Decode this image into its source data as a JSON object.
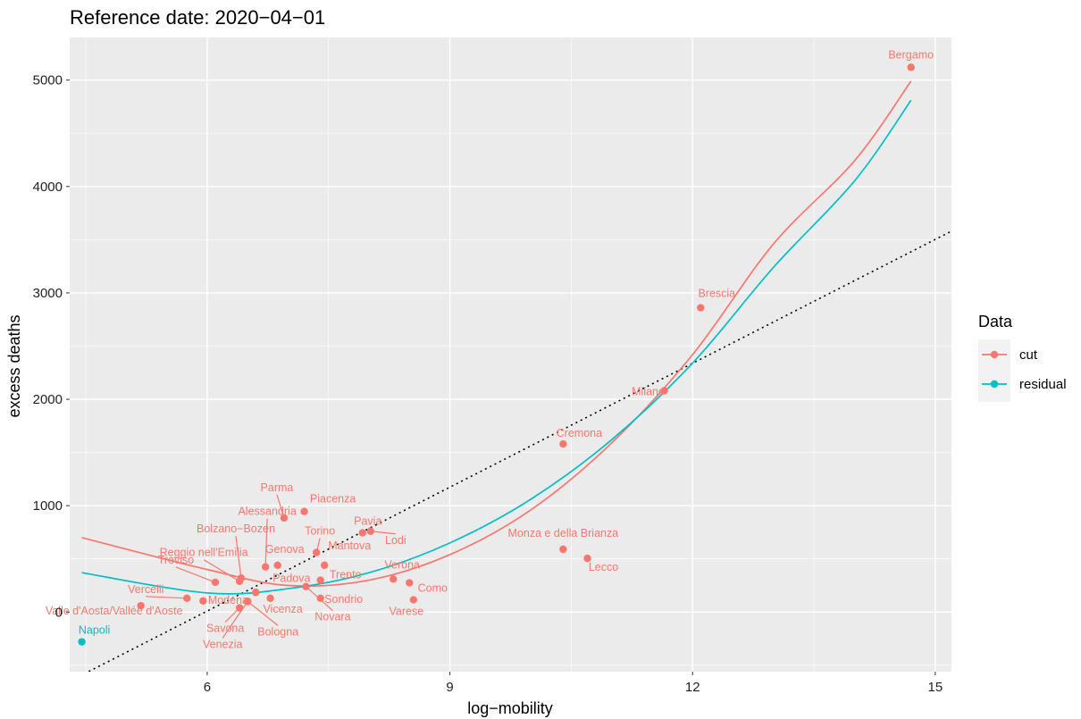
{
  "chart_data": {
    "type": "scatter",
    "title": "Reference date: 2020−04−01",
    "xlabel": "log−mobility",
    "ylabel": "excess deaths",
    "xlim": [
      4.3,
      15.2
    ],
    "ylim": [
      -560,
      5400
    ],
    "x_ticks": [
      6,
      9,
      12,
      15
    ],
    "x_tick_labels": [
      "6",
      "9",
      "12",
      "15"
    ],
    "y_ticks": [
      0,
      1000,
      2000,
      3000,
      4000,
      5000
    ],
    "y_tick_labels": [
      "0",
      "1000",
      "2000",
      "3000",
      "4000",
      "5000"
    ],
    "x_minor_ticks": [
      4.5,
      7.5,
      10.5,
      13.5
    ],
    "y_minor_ticks": [
      -500,
      500,
      1500,
      2500,
      3500,
      4500
    ],
    "grid": true,
    "legend": {
      "title": "Data",
      "position": "right",
      "entries": [
        {
          "label": "cut",
          "color": "#F8766D"
        },
        {
          "label": "residual",
          "color": "#00BFC4"
        }
      ]
    },
    "colors": {
      "cut": "#F8766D",
      "residual": "#00BFC4",
      "panel": "#EBEBEB",
      "grid": "#FFFFFF"
    },
    "series": [
      {
        "name": "cut",
        "points": [
          {
            "label": "Bergamo",
            "x": 14.7,
            "y": 5120
          },
          {
            "label": "Brescia",
            "x": 12.1,
            "y": 2860
          },
          {
            "label": "Milano",
            "x": 11.65,
            "y": 2080
          },
          {
            "label": "Cremona",
            "x": 10.4,
            "y": 1580
          },
          {
            "label": "Monza e della Brianza",
            "x": 10.4,
            "y": 590
          },
          {
            "label": "Lecco",
            "x": 10.7,
            "y": 505
          },
          {
            "label": "Parma",
            "x": 6.95,
            "y": 885
          },
          {
            "label": "Piacenza",
            "x": 7.2,
            "y": 945
          },
          {
            "label": "Pavia",
            "x": 7.92,
            "y": 745
          },
          {
            "label": "Lodi",
            "x": 8.02,
            "y": 760
          },
          {
            "label": "Alessandria",
            "x": 6.72,
            "y": 425
          },
          {
            "label": "Bolzano−Bozen",
            "x": 6.42,
            "y": 320
          },
          {
            "label": "Torino",
            "x": 7.35,
            "y": 560
          },
          {
            "label": "Genova",
            "x": 6.87,
            "y": 440
          },
          {
            "label": "Mantova",
            "x": 7.45,
            "y": 440
          },
          {
            "label": "Reggio nell'Emilia",
            "x": 6.4,
            "y": 290
          },
          {
            "label": "Treviso",
            "x": 6.1,
            "y": 280
          },
          {
            "label": "Padova",
            "x": 6.6,
            "y": 185
          },
          {
            "label": "Trento",
            "x": 7.4,
            "y": 300
          },
          {
            "label": "Verona",
            "x": 8.3,
            "y": 310
          },
          {
            "label": "Como",
            "x": 8.5,
            "y": 275
          },
          {
            "label": "Sondrio",
            "x": 7.4,
            "y": 130
          },
          {
            "label": "Varese",
            "x": 8.55,
            "y": 115
          },
          {
            "label": "Vicenza",
            "x": 6.78,
            "y": 130
          },
          {
            "label": "Novara",
            "x": 7.22,
            "y": 240
          },
          {
            "label": "Vercelli",
            "x": 5.75,
            "y": 130
          },
          {
            "label": "Modena",
            "x": 5.95,
            "y": 105
          },
          {
            "label": "Valle d'Aosta/Vallée d'Aoste",
            "x": 5.18,
            "y": 60
          },
          {
            "label": "Savona",
            "x": 6.4,
            "y": 40
          },
          {
            "label": "Venezia",
            "x": 6.5,
            "y": 100
          },
          {
            "label": "Bologna",
            "x": 6.5,
            "y": 100
          }
        ]
      },
      {
        "name": "residual",
        "points": [
          {
            "label": "Napoli",
            "x": 4.45,
            "y": -280
          }
        ]
      }
    ],
    "fitted_curves": [
      {
        "series": "cut",
        "x_range": [
          4.45,
          14.7
        ],
        "samples": [
          [
            4.45,
            700
          ],
          [
            6.0,
            400
          ],
          [
            7.0,
            250
          ],
          [
            8.0,
            300
          ],
          [
            9.0,
            540
          ],
          [
            10.0,
            960
          ],
          [
            11.0,
            1590
          ],
          [
            12.0,
            2420
          ],
          [
            13.0,
            3460
          ],
          [
            14.0,
            4240
          ],
          [
            14.7,
            4990
          ]
        ]
      },
      {
        "series": "residual",
        "x_range": [
          4.45,
          14.7
        ],
        "samples": [
          [
            4.45,
            370
          ],
          [
            6.0,
            180
          ],
          [
            7.0,
            220
          ],
          [
            8.0,
            370
          ],
          [
            9.0,
            650
          ],
          [
            10.0,
            1060
          ],
          [
            11.0,
            1620
          ],
          [
            12.0,
            2340
          ],
          [
            13.0,
            3240
          ],
          [
            14.0,
            4050
          ],
          [
            14.7,
            4810
          ]
        ]
      }
    ],
    "reference_line": {
      "style": "dotted",
      "color": "#000000",
      "x": [
        4.3,
        15.2
      ],
      "y": [
        -650,
        3580
      ]
    }
  }
}
